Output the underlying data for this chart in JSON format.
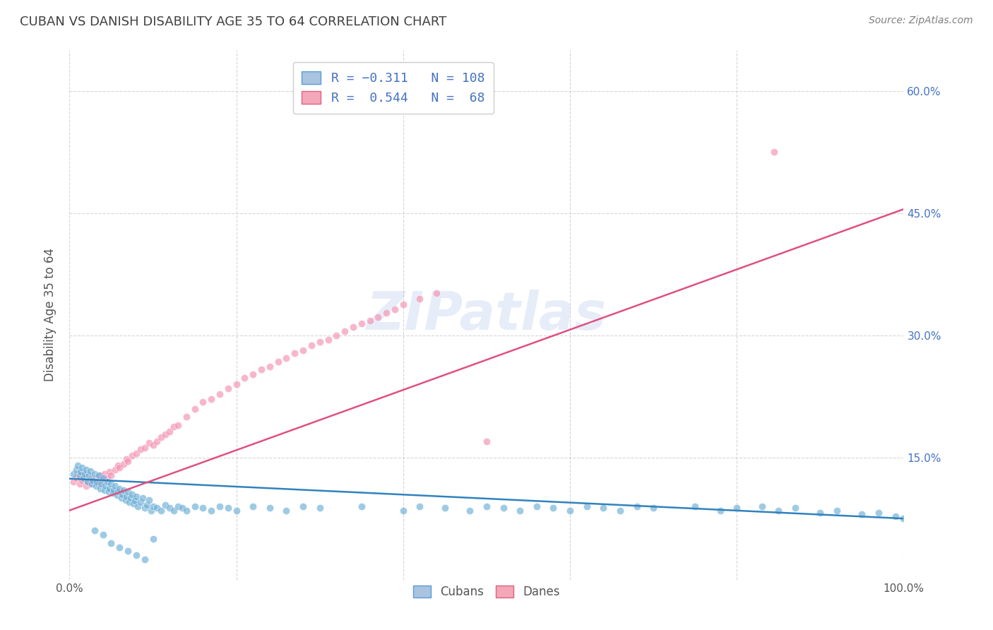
{
  "title": "CUBAN VS DANISH DISABILITY AGE 35 TO 64 CORRELATION CHART",
  "source": "Source: ZipAtlas.com",
  "ylabel": "Disability Age 35 to 64",
  "xlim": [
    0,
    1.0
  ],
  "ylim": [
    0,
    0.65
  ],
  "ytick_positions": [
    0.15,
    0.3,
    0.45,
    0.6
  ],
  "ytick_labels": [
    "15.0%",
    "30.0%",
    "45.0%",
    "60.0%"
  ],
  "cubans_color": "#6baed6",
  "cubans_face": "#a8c4e0",
  "cubans_edge": "#5b9bd5",
  "danes_color": "#f48fb1",
  "danes_face": "#f4a7b9",
  "danes_edge": "#e06080",
  "cubans_line_color": "#3182bd",
  "danes_line_color": "#e05080",
  "watermark": "ZIPatlas",
  "background_color": "#ffffff",
  "grid_color": "#cccccc",
  "title_color": "#404040",
  "source_color": "#808080",
  "right_axis_color": "#4472c4",
  "cubans_R": -0.311,
  "cubans_N": 108,
  "danes_R": 0.544,
  "danes_N": 68,
  "cubans_line_x0": 0.0,
  "cubans_line_y0": 0.124,
  "cubans_line_x1": 1.0,
  "cubans_line_y1": 0.075,
  "danes_line_x0": 0.0,
  "danes_line_y0": 0.085,
  "danes_line_x1": 1.0,
  "danes_line_y1": 0.455,
  "cubans_x": [
    0.005,
    0.008,
    0.01,
    0.012,
    0.013,
    0.015,
    0.017,
    0.018,
    0.02,
    0.022,
    0.023,
    0.025,
    0.027,
    0.028,
    0.03,
    0.032,
    0.033,
    0.035,
    0.037,
    0.038,
    0.04,
    0.042,
    0.043,
    0.045,
    0.047,
    0.048,
    0.05,
    0.052,
    0.053,
    0.055,
    0.057,
    0.058,
    0.06,
    0.062,
    0.063,
    0.065,
    0.067,
    0.068,
    0.07,
    0.072,
    0.073,
    0.075,
    0.077,
    0.078,
    0.08,
    0.082,
    0.085,
    0.088,
    0.09,
    0.093,
    0.095,
    0.098,
    0.1,
    0.105,
    0.11,
    0.115,
    0.12,
    0.125,
    0.13,
    0.135,
    0.14,
    0.15,
    0.16,
    0.17,
    0.18,
    0.19,
    0.2,
    0.22,
    0.24,
    0.26,
    0.28,
    0.3,
    0.35,
    0.4,
    0.42,
    0.45,
    0.48,
    0.5,
    0.52,
    0.54,
    0.56,
    0.58,
    0.6,
    0.62,
    0.64,
    0.66,
    0.68,
    0.7,
    0.75,
    0.78,
    0.8,
    0.83,
    0.85,
    0.87,
    0.9,
    0.92,
    0.95,
    0.97,
    0.99,
    1.0,
    0.03,
    0.04,
    0.05,
    0.06,
    0.07,
    0.08,
    0.09,
    0.1
  ],
  "cubans_y": [
    0.13,
    0.135,
    0.14,
    0.128,
    0.132,
    0.138,
    0.125,
    0.13,
    0.135,
    0.12,
    0.128,
    0.133,
    0.118,
    0.122,
    0.13,
    0.115,
    0.12,
    0.128,
    0.112,
    0.118,
    0.125,
    0.11,
    0.115,
    0.12,
    0.108,
    0.112,
    0.118,
    0.106,
    0.11,
    0.115,
    0.104,
    0.108,
    0.112,
    0.1,
    0.105,
    0.11,
    0.098,
    0.102,
    0.108,
    0.095,
    0.1,
    0.105,
    0.093,
    0.097,
    0.102,
    0.09,
    0.095,
    0.1,
    0.088,
    0.092,
    0.098,
    0.085,
    0.09,
    0.088,
    0.085,
    0.092,
    0.088,
    0.085,
    0.09,
    0.088,
    0.085,
    0.09,
    0.088,
    0.085,
    0.09,
    0.088,
    0.085,
    0.09,
    0.088,
    0.085,
    0.09,
    0.088,
    0.09,
    0.085,
    0.09,
    0.088,
    0.085,
    0.09,
    0.088,
    0.085,
    0.09,
    0.088,
    0.085,
    0.09,
    0.088,
    0.085,
    0.09,
    0.088,
    0.09,
    0.085,
    0.088,
    0.09,
    0.085,
    0.088,
    0.082,
    0.085,
    0.08,
    0.082,
    0.078,
    0.075,
    0.06,
    0.055,
    0.045,
    0.04,
    0.035,
    0.03,
    0.025,
    0.05
  ],
  "danes_x": [
    0.005,
    0.008,
    0.01,
    0.012,
    0.015,
    0.017,
    0.02,
    0.022,
    0.025,
    0.027,
    0.03,
    0.032,
    0.035,
    0.037,
    0.04,
    0.042,
    0.045,
    0.048,
    0.05,
    0.055,
    0.058,
    0.06,
    0.065,
    0.068,
    0.07,
    0.075,
    0.08,
    0.085,
    0.09,
    0.095,
    0.1,
    0.105,
    0.11,
    0.115,
    0.12,
    0.125,
    0.13,
    0.14,
    0.15,
    0.16,
    0.17,
    0.18,
    0.19,
    0.2,
    0.21,
    0.22,
    0.23,
    0.24,
    0.25,
    0.26,
    0.27,
    0.28,
    0.29,
    0.3,
    0.31,
    0.32,
    0.33,
    0.34,
    0.35,
    0.36,
    0.37,
    0.38,
    0.39,
    0.4,
    0.42,
    0.44,
    0.5,
    0.845
  ],
  "danes_y": [
    0.12,
    0.125,
    0.13,
    0.118,
    0.122,
    0.128,
    0.115,
    0.12,
    0.118,
    0.125,
    0.12,
    0.125,
    0.118,
    0.128,
    0.122,
    0.13,
    0.125,
    0.132,
    0.128,
    0.135,
    0.14,
    0.138,
    0.142,
    0.148,
    0.145,
    0.152,
    0.155,
    0.16,
    0.162,
    0.168,
    0.165,
    0.17,
    0.175,
    0.178,
    0.182,
    0.188,
    0.19,
    0.2,
    0.21,
    0.218,
    0.222,
    0.228,
    0.235,
    0.24,
    0.248,
    0.252,
    0.258,
    0.262,
    0.268,
    0.272,
    0.278,
    0.282,
    0.288,
    0.292,
    0.295,
    0.3,
    0.305,
    0.31,
    0.315,
    0.318,
    0.322,
    0.328,
    0.332,
    0.338,
    0.345,
    0.352,
    0.17,
    0.525
  ]
}
